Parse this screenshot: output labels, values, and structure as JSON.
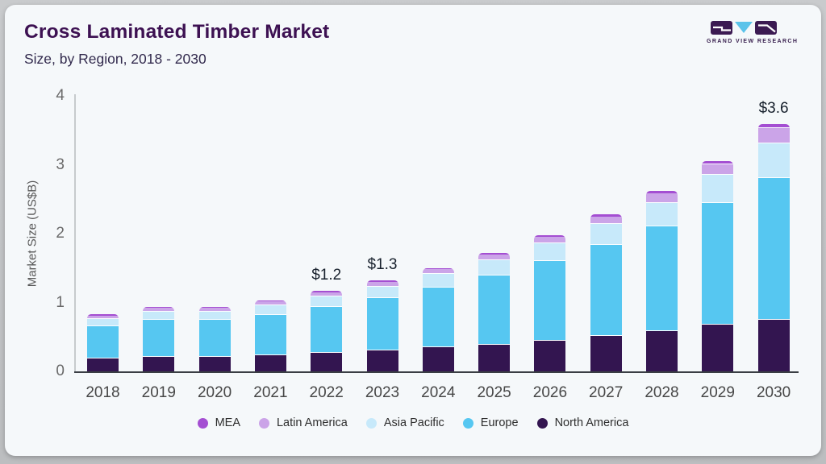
{
  "header": {
    "title": "Cross Laminated Timber Market",
    "subtitle": "Size, by Region, 2018 - 2030"
  },
  "logo": {
    "caption": "GRAND VIEW RESEARCH",
    "block_color": "#3b1a52",
    "triangle_color": "#5bc3ea"
  },
  "chart_data": {
    "type": "bar",
    "stacked": true,
    "title": "Cross Laminated Timber Market Size, by Region, 2018 - 2030",
    "xlabel": "",
    "ylabel": "Market Size (US$B)",
    "ylim": [
      0,
      4
    ],
    "yticks": [
      0,
      1,
      2,
      3,
      4
    ],
    "grid": false,
    "legend_position": "bottom",
    "legend_order": [
      "MEA",
      "Latin America",
      "Asia Pacific",
      "Europe",
      "North America"
    ],
    "categories": [
      "2018",
      "2019",
      "2020",
      "2021",
      "2022",
      "2023",
      "2024",
      "2025",
      "2026",
      "2027",
      "2028",
      "2029",
      "2030"
    ],
    "series": [
      {
        "name": "North America",
        "color": "#331550",
        "values": [
          0.19,
          0.21,
          0.21,
          0.23,
          0.27,
          0.3,
          0.35,
          0.39,
          0.44,
          0.51,
          0.58,
          0.68,
          0.75
        ]
      },
      {
        "name": "Europe",
        "color": "#56c7f1",
        "values": [
          0.47,
          0.54,
          0.54,
          0.59,
          0.67,
          0.76,
          0.87,
          1.0,
          1.16,
          1.33,
          1.53,
          1.76,
          2.06
        ]
      },
      {
        "name": "Asia Pacific",
        "color": "#c7e9fa",
        "values": [
          0.1,
          0.12,
          0.12,
          0.14,
          0.15,
          0.17,
          0.19,
          0.22,
          0.26,
          0.3,
          0.34,
          0.41,
          0.5
        ]
      },
      {
        "name": "Latin America",
        "color": "#cba4e8",
        "values": [
          0.05,
          0.05,
          0.05,
          0.06,
          0.06,
          0.07,
          0.07,
          0.08,
          0.09,
          0.1,
          0.13,
          0.15,
          0.22
        ]
      },
      {
        "name": "MEA",
        "color": "#a44ed2",
        "values": [
          0.015,
          0.015,
          0.015,
          0.015,
          0.02,
          0.02,
          0.02,
          0.025,
          0.03,
          0.04,
          0.045,
          0.05,
          0.055
        ]
      }
    ],
    "annotations": [
      {
        "category": "2022",
        "text": "$1.2"
      },
      {
        "category": "2023",
        "text": "$1.3"
      },
      {
        "category": "2030",
        "text": "$3.6"
      }
    ]
  }
}
